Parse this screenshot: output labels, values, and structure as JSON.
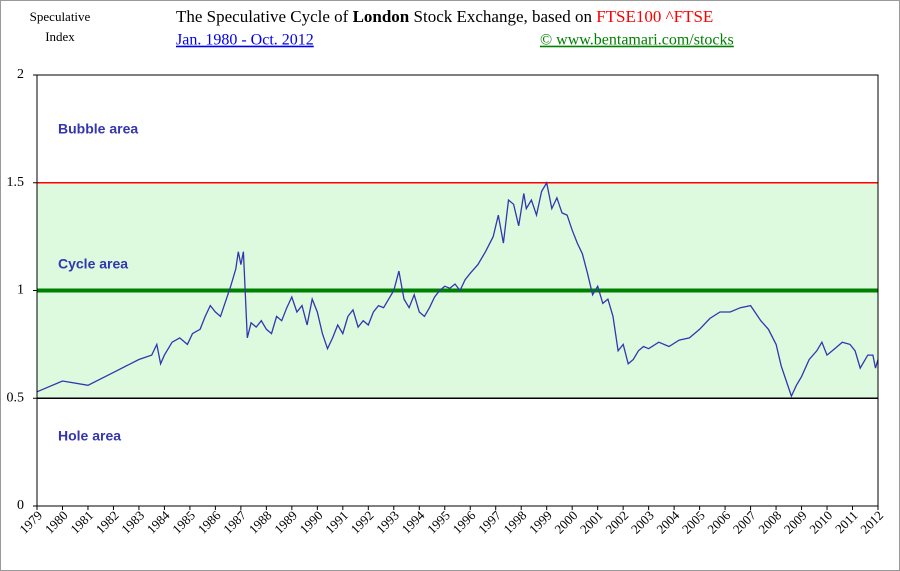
{
  "chart_data": {
    "type": "line",
    "title_parts": [
      "The Speculative Cycle of",
      "London",
      "Stock Exchange,  based on",
      "FTSE100 ^FTSE"
    ],
    "subtitle": "Jan. 1980 - Oct. 2012",
    "source": "©   www.bentamari.com/stocks",
    "y_label": [
      "Speculative",
      "Index"
    ],
    "annotations": [
      "Bubble area",
      "Cycle area",
      "Hole area"
    ],
    "reference_lines": [
      {
        "value": 1.5,
        "color": "#ff0000"
      },
      {
        "value": 1,
        "color": "#008000"
      },
      {
        "value": 0.5,
        "color": "#000000"
      }
    ],
    "band_color": "#ddfadf",
    "color": "#3535b0",
    "xlim": [
      1979,
      2012
    ],
    "xticks": [
      1979,
      1980,
      1981,
      1982,
      1983,
      1984,
      1985,
      1986,
      1987,
      1988,
      1989,
      1990,
      1991,
      1992,
      1993,
      1994,
      1995,
      1996,
      1997,
      1998,
      1999,
      2000,
      2001,
      2002,
      2003,
      2004,
      2005,
      2006,
      2007,
      2008,
      2009,
      2010,
      2011,
      2012
    ],
    "ylim": [
      0,
      2
    ],
    "yticks": [
      0,
      0.5,
      1,
      1.5,
      2
    ],
    "x": [
      1979.0,
      1980.0,
      1981.0,
      1982.0,
      1983.0,
      1983.5,
      1983.7,
      1983.85,
      1984.0,
      1984.3,
      1984.6,
      1984.9,
      1985.1,
      1985.4,
      1985.6,
      1985.8,
      1986.0,
      1986.2,
      1986.4,
      1986.6,
      1986.8,
      1986.9,
      1987.0,
      1987.1,
      1987.25,
      1987.4,
      1987.6,
      1987.8,
      1988.0,
      1988.2,
      1988.4,
      1988.6,
      1988.8,
      1989.0,
      1989.2,
      1989.4,
      1989.6,
      1989.8,
      1990.0,
      1990.2,
      1990.4,
      1990.6,
      1990.8,
      1991.0,
      1991.2,
      1991.4,
      1991.6,
      1991.8,
      1992.0,
      1992.2,
      1992.4,
      1992.6,
      1992.8,
      1993.0,
      1993.2,
      1993.4,
      1993.6,
      1993.8,
      1994.0,
      1994.2,
      1994.4,
      1994.6,
      1994.8,
      1995.0,
      1995.2,
      1995.4,
      1995.6,
      1995.8,
      1996.0,
      1996.3,
      1996.6,
      1996.9,
      1997.1,
      1997.3,
      1997.5,
      1997.7,
      1997.9,
      1998.1,
      1998.2,
      1998.4,
      1998.6,
      1998.8,
      1999.0,
      1999.2,
      1999.4,
      1999.6,
      1999.8,
      2000.0,
      2000.2,
      2000.4,
      2000.6,
      2000.8,
      2001.0,
      2001.2,
      2001.4,
      2001.6,
      2001.8,
      2002.0,
      2002.2,
      2002.4,
      2002.6,
      2002.8,
      2003.0,
      2003.4,
      2003.8,
      2004.2,
      2004.6,
      2005.0,
      2005.4,
      2005.8,
      2006.2,
      2006.6,
      2007.0,
      2007.4,
      2007.7,
      2008.0,
      2008.2,
      2008.4,
      2008.6,
      2008.8,
      2009.0,
      2009.3,
      2009.6,
      2009.8,
      2010.0,
      2010.3,
      2010.6,
      2010.9,
      2011.1,
      2011.3,
      2011.6,
      2011.8,
      2011.9,
      2012.0
    ],
    "values": [
      0.53,
      0.58,
      0.56,
      0.62,
      0.68,
      0.7,
      0.75,
      0.66,
      0.7,
      0.76,
      0.78,
      0.75,
      0.8,
      0.82,
      0.88,
      0.93,
      0.9,
      0.88,
      0.95,
      1.02,
      1.1,
      1.18,
      1.12,
      1.18,
      0.78,
      0.85,
      0.83,
      0.86,
      0.82,
      0.8,
      0.88,
      0.86,
      0.92,
      0.97,
      0.9,
      0.93,
      0.84,
      0.96,
      0.9,
      0.8,
      0.73,
      0.78,
      0.84,
      0.8,
      0.88,
      0.91,
      0.83,
      0.86,
      0.84,
      0.9,
      0.93,
      0.92,
      0.96,
      1.0,
      1.09,
      0.96,
      0.92,
      0.98,
      0.9,
      0.88,
      0.92,
      0.97,
      1.0,
      1.02,
      1.01,
      1.03,
      1.0,
      1.05,
      1.08,
      1.12,
      1.18,
      1.25,
      1.35,
      1.22,
      1.42,
      1.4,
      1.3,
      1.45,
      1.38,
      1.42,
      1.35,
      1.46,
      1.5,
      1.38,
      1.43,
      1.36,
      1.35,
      1.28,
      1.22,
      1.17,
      1.08,
      0.98,
      1.02,
      0.94,
      0.96,
      0.88,
      0.72,
      0.75,
      0.66,
      0.68,
      0.72,
      0.74,
      0.73,
      0.76,
      0.74,
      0.77,
      0.78,
      0.82,
      0.87,
      0.9,
      0.9,
      0.92,
      0.93,
      0.86,
      0.82,
      0.75,
      0.65,
      0.58,
      0.51,
      0.56,
      0.6,
      0.68,
      0.72,
      0.76,
      0.7,
      0.73,
      0.76,
      0.75,
      0.72,
      0.64,
      0.7,
      0.7,
      0.64,
      0.68
    ]
  }
}
